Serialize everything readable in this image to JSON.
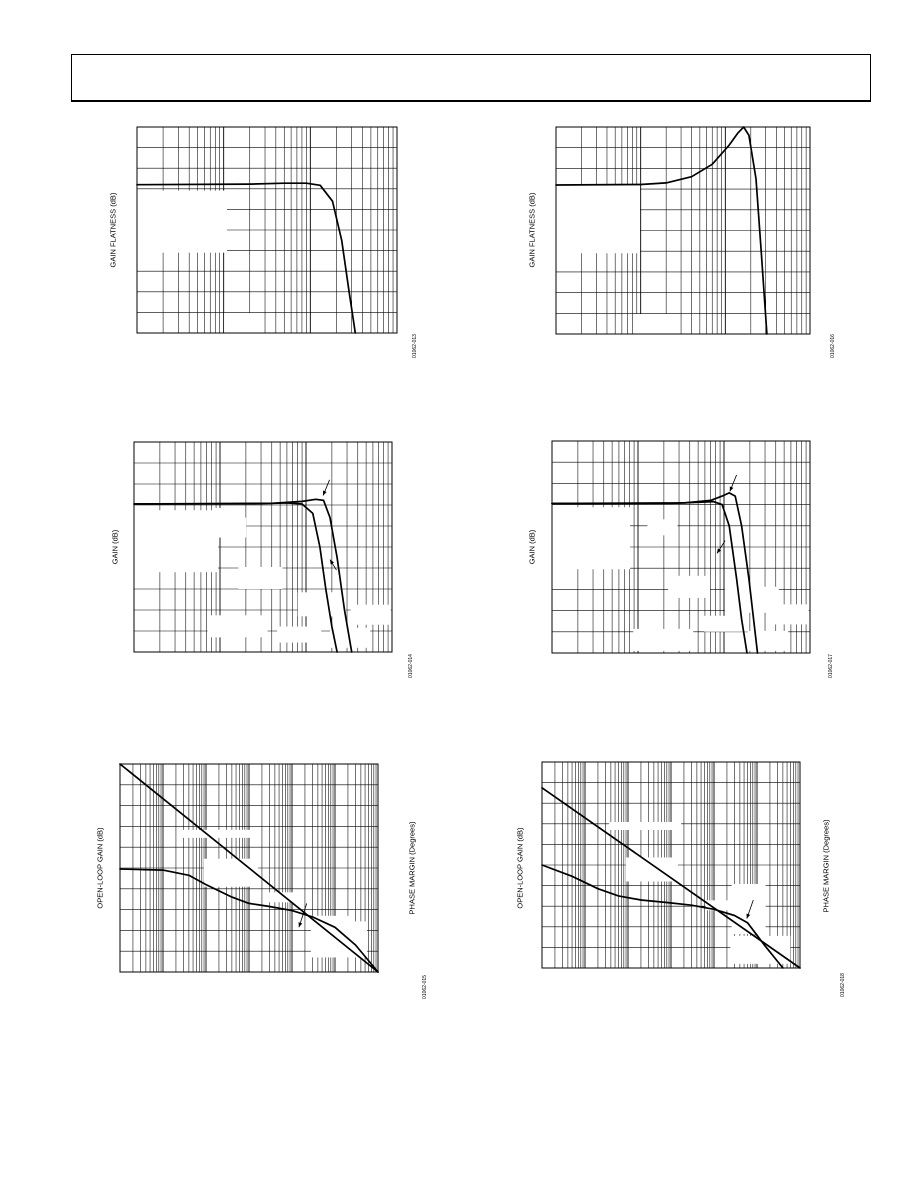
{
  "page": {
    "background": "#ffffff",
    "ink": "#000000"
  },
  "chart_data": [
    {
      "id": "p1",
      "type": "line",
      "ylabel": "GAIN FLATNESS (dB)",
      "figure_id": "01062-013",
      "x_scale": "log",
      "xlim": [
        1,
        1000
      ],
      "ylim": [
        0,
        1
      ],
      "grid": true,
      "mask": [
        [
          0,
          0.61
        ],
        [
          0.335,
          1.0
        ]
      ],
      "series": [
        {
          "x": [
            1,
            20,
            50,
            90,
            130,
            180,
            230,
            280,
            330
          ],
          "y": [
            0.72,
            0.723,
            0.727,
            0.727,
            0.717,
            0.64,
            0.45,
            0.2,
            0.0
          ]
        }
      ]
    },
    {
      "id": "p2",
      "type": "line",
      "ylabel": "GAIN FLATNESS (dB)",
      "figure_id": "01062-016",
      "x_scale": "log",
      "xlim": [
        1,
        1000
      ],
      "ylim": [
        0,
        1
      ],
      "grid": true,
      "mask": [
        [
          0,
          0.61
        ],
        [
          0.31,
          1.0
        ]
      ],
      "series": [
        {
          "x": [
            1,
            10,
            20,
            40,
            70,
            110,
            140,
            165,
            190,
            230,
            265,
            310
          ],
          "y": [
            0.72,
            0.722,
            0.73,
            0.76,
            0.82,
            0.91,
            0.97,
            1.0,
            0.96,
            0.75,
            0.4,
            0.0
          ]
        }
      ]
    },
    {
      "id": "p3",
      "type": "line",
      "ylabel": "GAIN (dB)",
      "figure_id": "01062-014",
      "x_scale": "log",
      "xlim": [
        1,
        1000
      ],
      "ylim": [
        0,
        1
      ],
      "grid": true,
      "mask": [
        [
          0,
          0.62
        ],
        [
          0.285,
          0.93
        ],
        [
          0.405,
          0.7
        ],
        [
          0.555,
          0.955
        ],
        [
          0.635,
          0.83
        ],
        [
          0.31,
          0.39
        ],
        [
          0.28,
          0.455
        ],
        [
          0.76,
          0.98
        ],
        [
          0.84,
          0.87
        ]
      ],
      "series": [
        {
          "x": [
            1,
            30,
            60,
            90,
            120,
            145,
            170,
            200,
            230
          ],
          "y": [
            0.705,
            0.706,
            0.71,
            0.705,
            0.66,
            0.5,
            0.3,
            0.12,
            0.0
          ]
        },
        {
          "x": [
            1,
            40,
            90,
            130,
            160,
            190,
            230,
            280,
            340
          ],
          "y": [
            0.705,
            0.708,
            0.717,
            0.727,
            0.722,
            0.64,
            0.45,
            0.2,
            0.0
          ]
        }
      ],
      "arrows": [
        {
          "from": [
            188,
            0.82
          ],
          "to": [
            158,
            0.745
          ]
        },
        {
          "from": [
            226,
            0.39
          ],
          "to": [
            190,
            0.44
          ]
        }
      ]
    },
    {
      "id": "p4",
      "type": "line",
      "ylabel": "GAIN (dB)",
      "figure_id": "01062-017",
      "x_scale": "log",
      "xlim": [
        1,
        1000
      ],
      "ylim": [
        0,
        1
      ],
      "grid": true,
      "mask": [
        [
          0,
          0.605
        ],
        [
          0.315,
          0.99
        ],
        [
          0.45,
          0.74
        ],
        [
          0.59,
          0.9
        ],
        [
          0.67,
          0.81
        ],
        [
          0.37,
          0.445
        ],
        [
          0.76,
          0.99
        ],
        [
          0.84,
          0.865
        ]
      ],
      "series": [
        {
          "x": [
            1,
            25,
            55,
            75,
            95,
            115,
            140,
            160,
            185
          ],
          "y": [
            0.705,
            0.706,
            0.712,
            0.714,
            0.7,
            0.6,
            0.35,
            0.16,
            0.0
          ]
        },
        {
          "x": [
            1,
            35,
            70,
            95,
            115,
            135,
            160,
            195,
            245
          ],
          "y": [
            0.705,
            0.708,
            0.72,
            0.74,
            0.755,
            0.74,
            0.6,
            0.35,
            0.0
          ]
        }
      ],
      "arrows": [
        {
          "from": [
            140,
            0.84
          ],
          "to": [
            117,
            0.762
          ]
        },
        {
          "from": [
            103,
            0.53
          ],
          "to": [
            83,
            0.47
          ]
        }
      ]
    },
    {
      "id": "p5",
      "type": "line",
      "ylabel": "OPEN-LOOP GAIN (dB)",
      "y2label": "PHASE MARGIN (Degrees)",
      "figure_id": "01062-015",
      "x_scale": "log",
      "xlim": [
        1,
        1000000
      ],
      "ylim": [
        0,
        1
      ],
      "grid": true,
      "mask": [
        [
          0.325,
          0.59
        ],
        [
          0.23,
          0.355
        ],
        [
          0.74,
          0.855
        ],
        [
          0.74,
          0.93
        ],
        [
          0.565,
          0.665
        ]
      ],
      "series": [
        {
          "x": [
            1,
            1000000
          ],
          "y": [
            1.0,
            0.0
          ]
        },
        {
          "x": [
            1,
            10,
            40,
            100,
            400,
            1000,
            3000,
            10000,
            30000,
            100000,
            300000,
            1000000
          ],
          "y": [
            0.495,
            0.49,
            0.465,
            0.42,
            0.36,
            0.33,
            0.315,
            0.295,
            0.265,
            0.215,
            0.13,
            0.0
          ]
        }
      ],
      "arrows": [
        {
          "from": [
            22000,
            0.33
          ],
          "to": [
            14500,
            0.215
          ]
        }
      ]
    },
    {
      "id": "p6",
      "type": "line",
      "ylabel": "OPEN-LOOP GAIN (dB)",
      "y2label": "PHASE MARGIN (Degrees)",
      "figure_id": "01062-018",
      "x_scale": "log",
      "xlim": [
        1,
        1000000
      ],
      "ylim": [
        0,
        1
      ],
      "grid": true,
      "mask": [
        [
          0.325,
          0.58
        ],
        [
          0.26,
          0.33
        ],
        [
          0.735,
          0.835
        ],
        [
          0.73,
          0.98
        ],
        [
          0.635,
          0.72
        ]
      ],
      "series": [
        {
          "x": [
            1,
            1000000
          ],
          "y": [
            0.875,
            0.0
          ]
        },
        {
          "x": [
            1,
            5,
            20,
            60,
            200,
            800,
            3000,
            10000,
            30000,
            60000,
            150000,
            400000
          ],
          "y": [
            0.5,
            0.445,
            0.385,
            0.35,
            0.33,
            0.318,
            0.305,
            0.285,
            0.255,
            0.22,
            0.11,
            0.0
          ]
        }
      ],
      "arrows": [
        {
          "from": [
            82000,
            0.33
          ],
          "to": [
            58000,
            0.24
          ]
        }
      ]
    }
  ]
}
